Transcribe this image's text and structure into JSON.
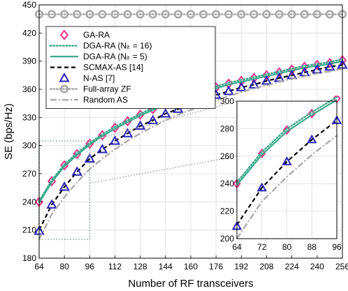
{
  "chart_data": {
    "type": "line",
    "title": "",
    "xlabel": "Number of RF transceivers",
    "ylabel": "SE (bps/Hz)",
    "xlim": [
      64,
      256
    ],
    "ylim": [
      180,
      450
    ],
    "xticks": [
      64,
      80,
      96,
      112,
      128,
      144,
      160,
      176,
      192,
      208,
      224,
      240,
      256
    ],
    "yticks": [
      180,
      210,
      240,
      270,
      300,
      330,
      360,
      390,
      420,
      450
    ],
    "grid": true,
    "legend_position": "top-left",
    "x": [
      64,
      72,
      80,
      88,
      96,
      104,
      112,
      120,
      128,
      136,
      144,
      152,
      160,
      168,
      176,
      184,
      192,
      200,
      208,
      216,
      224,
      232,
      240,
      248,
      256
    ],
    "series": [
      {
        "name": "GA-RA",
        "color": "#e8338a",
        "marker": "diamond",
        "line": "none",
        "values": [
          240,
          262,
          279,
          291,
          302,
          311,
          319,
          326,
          333,
          339,
          344,
          349,
          354,
          358,
          362,
          366,
          369,
          372,
          375,
          378,
          381,
          384,
          386,
          388,
          391
        ]
      },
      {
        "name": "DGA-RA ($N_{\\rm it}=16$)",
        "color": "#3aa88c",
        "marker": "none",
        "line": "dotted",
        "values": [
          241,
          263,
          280,
          292,
          303,
          312,
          320,
          327,
          334,
          340,
          345,
          350,
          355,
          359,
          363,
          367,
          370,
          373,
          376,
          379,
          382,
          385,
          387,
          389,
          392
        ]
      },
      {
        "name": "DGA-RA ($N_{\\rm it}=5$)",
        "color": "#3aa88c",
        "marker": "none",
        "line": "solid",
        "values": [
          239,
          261,
          278,
          290,
          301,
          310,
          318,
          325,
          332,
          338,
          343,
          348,
          353,
          357,
          361,
          365,
          368,
          371,
          374,
          377,
          380,
          383,
          385,
          387,
          390
        ]
      },
      {
        "name": "SCMAX-AS [14]",
        "color": "#000000",
        "marker": "none",
        "line": "dashed",
        "values": [
          210,
          237,
          256,
          272,
          286,
          296,
          305,
          313,
          321,
          327,
          334,
          339,
          344,
          349,
          354,
          358,
          362,
          365,
          369,
          372,
          375,
          378,
          381,
          384,
          386
        ]
      },
      {
        "name": "N-AS [7]",
        "color": "#2a22b8",
        "marker": "triangle",
        "line": "none",
        "values": [
          209,
          237,
          256,
          272,
          286,
          296,
          305,
          313,
          321,
          327,
          334,
          339,
          344,
          349,
          354,
          358,
          362,
          365,
          369,
          372,
          375,
          378,
          381,
          384,
          386
        ]
      },
      {
        "name": "Full-array ZF",
        "color": "#a6a6a6",
        "marker": "circle",
        "line": "dotted",
        "values": [
          440,
          440,
          440,
          440,
          440,
          440,
          440,
          440,
          440,
          440,
          440,
          440,
          440,
          440,
          440,
          440,
          440,
          440,
          440,
          440,
          440,
          440,
          440,
          440,
          440
        ]
      },
      {
        "name": "Random AS",
        "color": "#a6a6a6",
        "marker": "none",
        "line": "dashdot",
        "values": [
          200,
          227,
          245,
          261,
          275,
          286,
          296,
          305,
          313,
          320,
          327,
          333,
          338,
          343,
          348,
          353,
          357,
          361,
          364,
          368,
          371,
          374,
          377,
          379,
          382
        ]
      }
    ],
    "inset": {
      "xlim": [
        64,
        96
      ],
      "ylim": [
        200,
        300
      ],
      "xticks": [
        64,
        72,
        80,
        88,
        96
      ],
      "yticks": [
        200,
        220,
        240,
        260,
        280,
        300
      ],
      "zoom_region": {
        "x": [
          64,
          96
        ],
        "y": [
          200,
          305
        ]
      }
    }
  }
}
